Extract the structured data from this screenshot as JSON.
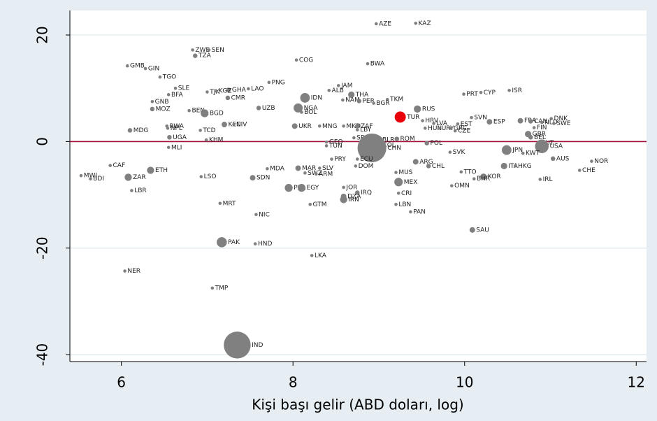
{
  "chart_data": {
    "type": "scatter",
    "x_label": "Kişi başı gelir (ABD doları, log)",
    "xlim": [
      5.4,
      12.12
    ],
    "ylim": [
      -41.3,
      24.6
    ],
    "xticks": [
      6,
      8,
      10,
      12
    ],
    "yticks": [
      20,
      0,
      -20,
      -40
    ],
    "grid": true,
    "reference_line": 0,
    "reference_color": "#a3123a",
    "color": "#808080",
    "highlight": "TUR",
    "highlight_color": "#e8000b",
    "labels": [
      "AZE",
      "KAZ",
      "ZWE",
      "SEN",
      "TZA",
      "COG",
      "BWA",
      "GMB",
      "GIN",
      "TGO",
      "PNG",
      "JAM",
      "SLE",
      "LAO",
      "GHA",
      "TJK",
      "KGZ",
      "ALB",
      "ISR",
      "CYP",
      "PRT",
      "BFA",
      "THA",
      "IDN",
      "CMR",
      "GNB",
      "NAM",
      "PER",
      "TKM",
      "BGR",
      "UZB",
      "MOZ",
      "NGA",
      "RUS",
      "BEN",
      "BGD",
      "BOL",
      "TUR",
      "SVN",
      "HRV",
      "FRA",
      "DNK",
      "ESP",
      "LVA",
      "EST",
      "CAN",
      "NLD",
      "SWE",
      "KEN",
      "CIV",
      "RWA",
      "UKR",
      "MNG",
      "MKD",
      "ZAF",
      "HUN",
      "URY",
      "GRC",
      "NPL",
      "LBY",
      "FIN",
      "MDG",
      "TCD",
      "CZE",
      "GBR",
      "UGA",
      "SRB",
      "KHM",
      "ROM",
      "BEL",
      "BLR",
      "GEO",
      "POL",
      "AUT",
      "COL",
      "CHN",
      "TUN",
      "USA",
      "MLI",
      "JPN",
      "KWT",
      "SVK",
      "PRY",
      "ECU",
      "AUS",
      "NOR",
      "ARG",
      "CAF",
      "CHL",
      "DOM",
      "ITA",
      "HKG",
      "MAR",
      "SLV",
      "MDA",
      "ETH",
      "CHE",
      "TTO",
      "SWZ",
      "ARM",
      "MUS",
      "MWI",
      "BDI",
      "ZAR",
      "LSO",
      "SDN",
      "KOR",
      "BHR",
      "IRL",
      "MEX",
      "OMN",
      "JOR",
      "PHL",
      "EGY",
      "LBR",
      "CRI",
      "IRQ",
      "DZA",
      "IRN",
      "MRT",
      "GTM",
      "LBN",
      "PAN",
      "NIC",
      "SAU",
      "PAK",
      "HND",
      "LKA",
      "NER",
      "TMP",
      "IND"
    ],
    "x": [
      8.97,
      9.43,
      6.83,
      7.02,
      6.86,
      8.04,
      8.87,
      6.07,
      6.28,
      6.45,
      7.72,
      8.53,
      6.63,
      7.48,
      7.25,
      7.0,
      7.1,
      8.42,
      10.52,
      10.19,
      9.99,
      6.55,
      8.68,
      8.14,
      7.24,
      6.36,
      8.58,
      8.77,
      9.1,
      8.94,
      7.6,
      6.36,
      8.06,
      9.45,
      6.79,
      6.97,
      8.1,
      9.25,
      10.08,
      9.51,
      10.65,
      11.01,
      10.29,
      9.64,
      9.92,
      10.77,
      10.9,
      11.04,
      7.2,
      7.31,
      6.53,
      8.02,
      8.31,
      8.59,
      8.75,
      9.54,
      9.7,
      9.84,
      6.54,
      8.75,
      10.81,
      6.1,
      6.92,
      9.89,
      10.74,
      6.56,
      8.71,
      6.99,
      9.21,
      10.77,
      9.01,
      8.39,
      9.56,
      10.86,
      9.0,
      8.92,
      8.39,
      10.9,
      6.55,
      10.49,
      10.68,
      9.83,
      8.45,
      8.75,
      11.03,
      11.48,
      9.43,
      5.87,
      9.58,
      8.73,
      10.46,
      10.59,
      8.06,
      8.31,
      7.7,
      6.34,
      11.34,
      9.96,
      8.14,
      8.27,
      9.2,
      5.53,
      5.64,
      6.08,
      6.93,
      7.53,
      10.22,
      10.11,
      10.88,
      9.23,
      9.85,
      8.59,
      7.95,
      8.1,
      6.12,
      9.23,
      8.75,
      8.59,
      8.59,
      7.15,
      8.2,
      9.2,
      9.37,
      7.57,
      10.09,
      7.17,
      7.56,
      8.22,
      6.04,
      7.06,
      7.35
    ],
    "values": [
      22.1,
      22.2,
      17.2,
      17.2,
      16.1,
      15.3,
      14.6,
      14.2,
      13.7,
      12.1,
      11.1,
      10.5,
      10.0,
      9.9,
      9.7,
      9.3,
      9.5,
      9.6,
      9.6,
      9.2,
      8.9,
      8.8,
      8.8,
      8.2,
      8.2,
      7.5,
      7.8,
      7.6,
      7.9,
      7.2,
      6.3,
      6.1,
      6.3,
      6.1,
      5.8,
      5.3,
      5.5,
      4.6,
      4.5,
      3.9,
      3.9,
      4.3,
      3.7,
      3.4,
      3.3,
      3.8,
      3.6,
      3.4,
      3.2,
      3.2,
      2.9,
      2.9,
      2.9,
      2.9,
      2.9,
      2.5,
      2.5,
      2.5,
      2.5,
      2.2,
      2.6,
      2.1,
      2.1,
      2.0,
      1.4,
      0.8,
      0.7,
      0.3,
      0.5,
      0.8,
      0.3,
      -0.1,
      -0.3,
      -0.3,
      -0.7,
      -1.2,
      -0.8,
      -0.9,
      -1.1,
      -1.6,
      -2.2,
      -2.0,
      -3.3,
      -3.3,
      -3.2,
      -3.7,
      -3.8,
      -4.5,
      -4.6,
      -4.6,
      -4.6,
      -4.6,
      -5.0,
      -5.0,
      -5.1,
      -5.4,
      -5.4,
      -5.7,
      -5.9,
      -6.1,
      -5.8,
      -6.4,
      -7.0,
      -6.7,
      -6.6,
      -6.8,
      -6.6,
      -7.0,
      -7.1,
      -7.6,
      -8.3,
      -8.6,
      -8.7,
      -8.7,
      -9.2,
      -9.7,
      -9.6,
      -10.3,
      -10.9,
      -11.6,
      -11.8,
      -11.8,
      -13.2,
      -13.7,
      -16.6,
      -18.9,
      -19.2,
      -21.4,
      -24.3,
      -27.5,
      -38.2
    ],
    "sizes": [
      1,
      1,
      1,
      1,
      2,
      1,
      1,
      1,
      1,
      1,
      1,
      1,
      1,
      1,
      2,
      1,
      1,
      1,
      1,
      1,
      1,
      1,
      4,
      9,
      2,
      1,
      1,
      2,
      1,
      1,
      2,
      2,
      8,
      5,
      1,
      6,
      1,
      12,
      1,
      1,
      3,
      1,
      3,
      1,
      1,
      2,
      1,
      1,
      3,
      1,
      1,
      3,
      1,
      1,
      2,
      1,
      1,
      1,
      1,
      1,
      1,
      2,
      1,
      1,
      4,
      2,
      1,
      1,
      2,
      2,
      1,
      1,
      2,
      1,
      3,
      80,
      1,
      18,
      1,
      9,
      1,
      1,
      1,
      1,
      2,
      1,
      3,
      1,
      2,
      1,
      4,
      1,
      3,
      1,
      1,
      5,
      1,
      1,
      1,
      1,
      1,
      1,
      1,
      5,
      1,
      3,
      4,
      1,
      1,
      7,
      1,
      1,
      6,
      6,
      1,
      1,
      2,
      3,
      5,
      1,
      1,
      1,
      1,
      1,
      3,
      10,
      1,
      1,
      1,
      1,
      70
    ]
  }
}
